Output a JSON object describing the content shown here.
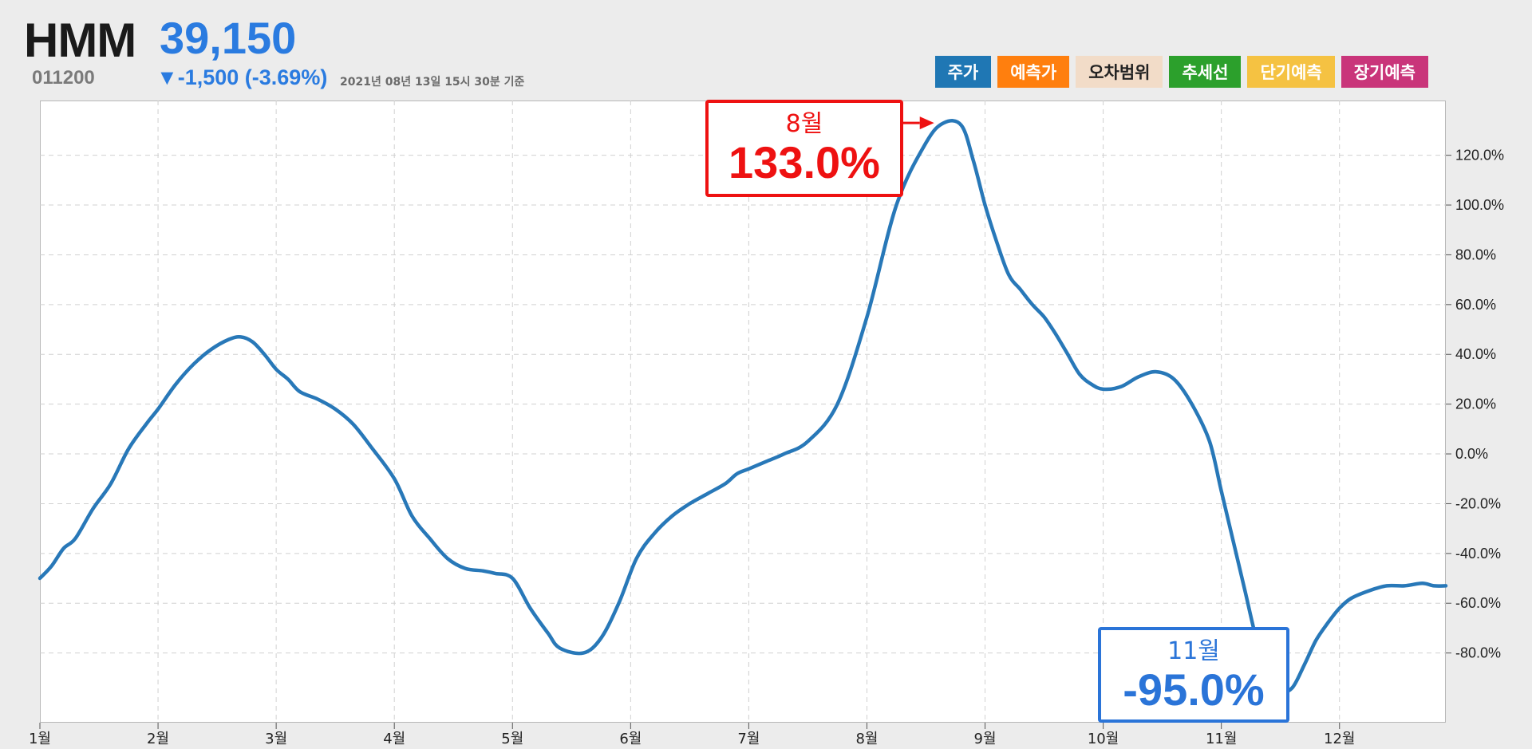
{
  "header": {
    "name": "HMM",
    "price": "39,150",
    "code": "011200",
    "change": "▼-1,500 (-3.69%)",
    "timestamp": "2021년 08년 13일 15시 30분 기준"
  },
  "legend": [
    {
      "label": "주가",
      "color": "#1f77b4"
    },
    {
      "label": "예측가",
      "color": "#ff7f0e"
    },
    {
      "label": "오차범위",
      "color": "#f2dcc8",
      "text_color": "#222222"
    },
    {
      "label": "추세선",
      "color": "#2ca02c"
    },
    {
      "label": "단기예측",
      "color": "#f5c242"
    },
    {
      "label": "장기예측",
      "color": "#c9357a"
    }
  ],
  "callouts": {
    "high": {
      "month": "8월",
      "value": "133.0%"
    },
    "low": {
      "month": "11월",
      "value": "-95.0%"
    }
  },
  "chart_data": {
    "type": "line",
    "xlim": [
      0,
      11.9
    ],
    "ylim": [
      -108,
      142
    ],
    "y_ticks": [
      120,
      100,
      80,
      60,
      40,
      20,
      0,
      -20,
      -40,
      -60,
      -80
    ],
    "y_tick_labels": [
      "120.0%",
      "100.0%",
      "80.0%",
      "60.0%",
      "40.0%",
      "20.0%",
      "0.0%",
      "-20.0%",
      "-40.0%",
      "-60.0%",
      "-80.0%"
    ],
    "x_ticks": [
      0,
      1,
      2,
      3,
      4,
      5,
      6,
      7,
      8,
      9,
      10,
      11
    ],
    "x_tick_labels": [
      "1월",
      "2월",
      "3월",
      "4월",
      "5월",
      "6월",
      "7월",
      "8월",
      "9월",
      "10월",
      "11월",
      "12월"
    ],
    "grid": true,
    "line_color": "#2878b8",
    "series": [
      {
        "x": [
          0,
          0.1,
          0.2,
          0.3,
          0.45,
          0.6,
          0.75,
          0.9,
          1.0,
          1.15,
          1.3,
          1.45,
          1.6,
          1.7,
          1.8,
          1.9,
          2.0,
          2.1,
          2.2,
          2.35,
          2.5,
          2.65,
          2.8,
          3.0,
          3.15,
          3.3,
          3.45,
          3.6,
          3.75,
          3.85,
          4.0,
          4.15,
          4.3,
          4.4,
          4.6,
          4.75,
          4.9,
          5.05,
          5.2,
          5.35,
          5.5,
          5.65,
          5.8,
          5.9,
          6.0,
          6.15,
          6.3,
          6.5,
          6.75,
          7.0,
          7.25,
          7.5,
          7.65,
          7.8,
          7.9,
          8.0,
          8.1,
          8.2,
          8.3,
          8.4,
          8.5,
          8.6,
          8.7,
          8.8,
          8.9,
          9.0,
          9.15,
          9.3,
          9.45,
          9.6,
          9.75,
          9.9,
          10.0,
          10.1,
          10.2,
          10.3,
          10.4,
          10.5,
          10.6,
          10.7,
          10.8,
          10.9,
          11.0,
          11.1,
          11.25,
          11.4,
          11.55,
          11.7,
          11.8,
          11.9
        ],
        "y": [
          -50,
          -45,
          -38,
          -34,
          -22,
          -12,
          2,
          12,
          18,
          28,
          36,
          42,
          46,
          47,
          45,
          40,
          34,
          30,
          25,
          22,
          18,
          12,
          3,
          -10,
          -25,
          -34,
          -42,
          -46,
          -47,
          -48,
          -50,
          -62,
          -72,
          -78,
          -80,
          -74,
          -60,
          -42,
          -32,
          -25,
          -20,
          -16,
          -12,
          -8,
          -6,
          -3,
          0,
          5,
          20,
          55,
          100,
          125,
          133,
          132,
          118,
          100,
          85,
          72,
          66,
          60,
          55,
          48,
          40,
          32,
          28,
          26,
          27,
          31,
          33,
          30,
          20,
          5,
          -15,
          -35,
          -55,
          -75,
          -88,
          -95,
          -94,
          -85,
          -75,
          -68,
          -62,
          -58,
          -55,
          -53,
          -53,
          -52,
          -53,
          -53
        ]
      }
    ]
  }
}
